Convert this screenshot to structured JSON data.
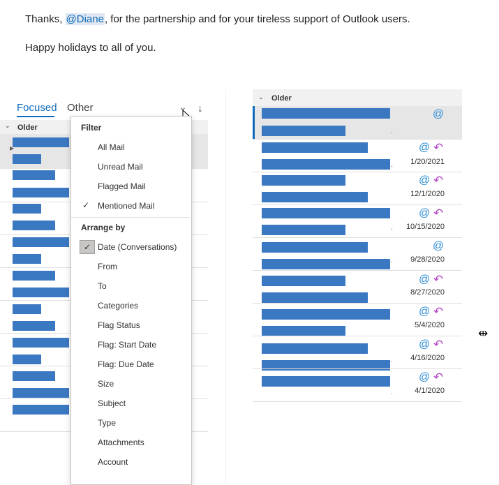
{
  "message": {
    "line1_prefix": "Thanks, ",
    "line1_mention": "@Diane",
    "line1_suffix": ", for the partnership and for your tireless support of Outlook users.",
    "line2": "Happy holidays to all of you."
  },
  "left_pane": {
    "tabs": {
      "focused": "Focused",
      "other": "Other"
    },
    "filter_icon": "chevron-down-icon",
    "sort_icon": "down-arrow-icon",
    "section": "Older"
  },
  "menu": {
    "filter_header": "Filter",
    "filter_items": [
      {
        "label": "All Mail",
        "checked": false
      },
      {
        "label": "Unread Mail",
        "checked": false
      },
      {
        "label": "Flagged Mail",
        "checked": false
      },
      {
        "label": "Mentioned Mail",
        "checked": true
      }
    ],
    "arrange_header": "Arrange by",
    "arrange_items": [
      {
        "label": "Date (Conversations)",
        "checked": true
      },
      {
        "label": "From"
      },
      {
        "label": "To"
      },
      {
        "label": "Categories"
      },
      {
        "label": "Flag Status"
      },
      {
        "label": "Flag: Start Date"
      },
      {
        "label": "Flag: Due Date"
      },
      {
        "label": "Size"
      },
      {
        "label": "Subject"
      },
      {
        "label": "Type"
      },
      {
        "label": "Attachments"
      },
      {
        "label": "Account"
      }
    ]
  },
  "right_pane": {
    "section": "Older",
    "rows": [
      {
        "date": "",
        "reply": false
      },
      {
        "date": "1/20/2021",
        "reply": true
      },
      {
        "date": "12/1/2020",
        "reply": true
      },
      {
        "date": "10/15/2020",
        "reply": true
      },
      {
        "date": "9/28/2020",
        "reply": false
      },
      {
        "date": "8/27/2020",
        "reply": true
      },
      {
        "date": "5/4/2020",
        "reply": true
      },
      {
        "date": "4/16/2020",
        "reply": true
      },
      {
        "date": "4/1/2020",
        "reply": true
      }
    ]
  },
  "icons": {
    "at": "@",
    "reply": "↶",
    "check": "✓",
    "chevron": "⌄",
    "sort": "↓",
    "resize": "⇹"
  },
  "colors": {
    "redaction": "#3b78c2",
    "accent": "#0f6cbd",
    "at": "#2d8dd6",
    "reply": "#b146c2"
  }
}
